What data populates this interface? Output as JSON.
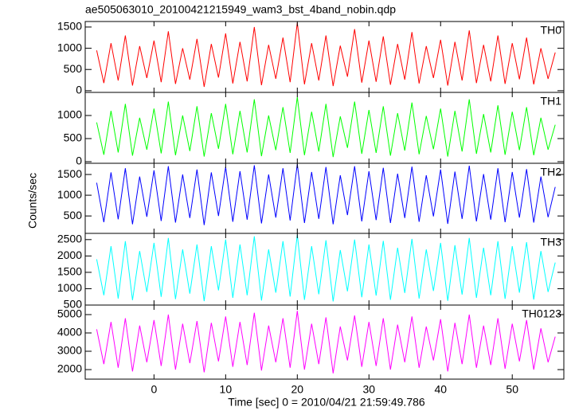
{
  "chart_data": [
    {
      "type": "line",
      "title": "ae505063010_20100421215949_wam3_bst_4band_nobin.qdp",
      "x": [
        -8,
        -7,
        -6,
        -5,
        -4,
        -3,
        -2,
        -1,
        0,
        1,
        2,
        3,
        4,
        5,
        6,
        7,
        8,
        9,
        10,
        11,
        12,
        13,
        14,
        15,
        16,
        17,
        18,
        19,
        20,
        21,
        22,
        23,
        24,
        25,
        26,
        27,
        28,
        29,
        30,
        31,
        32,
        33,
        34,
        35,
        36,
        37,
        38,
        39,
        40,
        41,
        42,
        43,
        44,
        45,
        46,
        47,
        48,
        49,
        50,
        51,
        52,
        53,
        54,
        55,
        56
      ],
      "series": [
        {
          "name": "TH0",
          "color": "#ff0000",
          "values": [
            950,
            180,
            1120,
            240,
            1300,
            120,
            1050,
            300,
            1180,
            200,
            1400,
            160,
            1000,
            260,
            1220,
            90,
            1100,
            310,
            1350,
            170,
            1150,
            220,
            1500,
            130,
            1080,
            280,
            1250,
            200,
            1600,
            150,
            1120,
            240,
            1300,
            110,
            1060,
            330,
            1450,
            190,
            1180,
            210,
            1280,
            140,
            1100,
            260,
            1380,
            170,
            1050,
            300,
            1200,
            120,
            1150,
            240,
            1420,
            180,
            1080,
            220,
            1300,
            160,
            1120,
            270,
            1250,
            150,
            1000,
            280,
            900
          ]
        }
      ],
      "xlim": [
        -9.6,
        57.2
      ],
      "xticks": [
        0,
        10,
        20,
        30,
        40,
        50
      ],
      "ylim": [
        -40,
        1630
      ],
      "yticks": [
        0,
        500,
        1000,
        1500
      ]
    },
    {
      "type": "line",
      "x": [
        -8,
        -7,
        -6,
        -5,
        -4,
        -3,
        -2,
        -1,
        0,
        1,
        2,
        3,
        4,
        5,
        6,
        7,
        8,
        9,
        10,
        11,
        12,
        13,
        14,
        15,
        16,
        17,
        18,
        19,
        20,
        21,
        22,
        23,
        24,
        25,
        26,
        27,
        28,
        29,
        30,
        31,
        32,
        33,
        34,
        35,
        36,
        37,
        38,
        39,
        40,
        41,
        42,
        43,
        44,
        45,
        46,
        47,
        48,
        49,
        50,
        51,
        52,
        53,
        54,
        55,
        56
      ],
      "series": [
        {
          "name": "TH1",
          "color": "#00ff00",
          "values": [
            850,
            150,
            1100,
            200,
            1250,
            130,
            950,
            260,
            1150,
            180,
            1300,
            140,
            1000,
            230,
            1200,
            110,
            1050,
            280,
            1250,
            160,
            1100,
            200,
            1350,
            120,
            1000,
            250,
            1180,
            190,
            1400,
            140,
            1080,
            220,
            1250,
            100,
            980,
            300,
            1300,
            170,
            1120,
            190,
            1200,
            130,
            1050,
            240,
            1280,
            160,
            990,
            270,
            1150,
            110,
            1100,
            220,
            1350,
            170,
            1030,
            200,
            1220,
            150,
            1080,
            250,
            1180,
            140,
            950,
            260,
            800
          ]
        }
      ],
      "xlim": [
        -9.6,
        57.2
      ],
      "xticks": [
        0,
        10,
        20,
        30,
        40,
        50
      ],
      "ylim": [
        -35,
        1500
      ],
      "yticks": [
        0,
        500,
        1000
      ]
    },
    {
      "type": "line",
      "ylabel": "Counts/sec",
      "x": [
        -8,
        -7,
        -6,
        -5,
        -4,
        -3,
        -2,
        -1,
        0,
        1,
        2,
        3,
        4,
        5,
        6,
        7,
        8,
        9,
        10,
        11,
        12,
        13,
        14,
        15,
        16,
        17,
        18,
        19,
        20,
        21,
        22,
        23,
        24,
        25,
        26,
        27,
        28,
        29,
        30,
        31,
        32,
        33,
        34,
        35,
        36,
        37,
        38,
        39,
        40,
        41,
        42,
        43,
        44,
        45,
        46,
        47,
        48,
        49,
        50,
        51,
        52,
        53,
        54,
        55,
        56
      ],
      "series": [
        {
          "name": "TH2",
          "color": "#0000ff",
          "values": [
            1300,
            350,
            1550,
            420,
            1650,
            300,
            1450,
            480,
            1600,
            380,
            1700,
            340,
            1500,
            450,
            1620,
            280,
            1550,
            500,
            1680,
            360,
            1580,
            410,
            1720,
            320,
            1500,
            460,
            1650,
            390,
            1750,
            330,
            1560,
            430,
            1680,
            300,
            1480,
            520,
            1700,
            370,
            1580,
            400,
            1660,
            330,
            1520,
            450,
            1690,
            360,
            1480,
            490,
            1620,
            310,
            1570,
            430,
            1710,
            370,
            1510,
            410,
            1650,
            350,
            1560,
            460,
            1630,
            340,
            1450,
            470,
            1200
          ]
        }
      ],
      "xlim": [
        -9.6,
        57.2
      ],
      "xticks": [
        0,
        10,
        20,
        30,
        40,
        50
      ],
      "ylim": [
        80,
        1770
      ],
      "yticks": [
        500,
        1000,
        1500
      ]
    },
    {
      "type": "line",
      "x": [
        -8,
        -7,
        -6,
        -5,
        -4,
        -3,
        -2,
        -1,
        0,
        1,
        2,
        3,
        4,
        5,
        6,
        7,
        8,
        9,
        10,
        11,
        12,
        13,
        14,
        15,
        16,
        17,
        18,
        19,
        20,
        21,
        22,
        23,
        24,
        25,
        26,
        27,
        28,
        29,
        30,
        31,
        32,
        33,
        34,
        35,
        36,
        37,
        38,
        39,
        40,
        41,
        42,
        43,
        44,
        45,
        46,
        47,
        48,
        49,
        50,
        51,
        52,
        53,
        54,
        55,
        56
      ],
      "series": [
        {
          "name": "TH3",
          "color": "#00ffff",
          "values": [
            1900,
            800,
            2300,
            700,
            2450,
            650,
            2150,
            900,
            2400,
            750,
            2550,
            680,
            2200,
            850,
            2350,
            620,
            2300,
            950,
            2500,
            720,
            2350,
            800,
            2600,
            640,
            2200,
            880,
            2450,
            760,
            2650,
            660,
            2300,
            830,
            2480,
            610,
            2180,
            920,
            2500,
            740,
            2350,
            790,
            2460,
            660,
            2250,
            870,
            2520,
            700,
            2200,
            930,
            2400,
            630,
            2330,
            820,
            2550,
            720,
            2250,
            800,
            2450,
            690,
            2300,
            880,
            2420,
            670,
            2150,
            900,
            1800
          ]
        }
      ],
      "xlim": [
        -9.6,
        57.2
      ],
      "xticks": [
        0,
        10,
        20,
        30,
        40,
        50
      ],
      "ylim": [
        500,
        2690
      ],
      "yticks": [
        500,
        1000,
        1500,
        2000,
        2500
      ]
    },
    {
      "type": "line",
      "xlabel": "Time [sec] 0 = 2010/04/21 21:59:49.786",
      "x": [
        -8,
        -7,
        -6,
        -5,
        -4,
        -3,
        -2,
        -1,
        0,
        1,
        2,
        3,
        4,
        5,
        6,
        7,
        8,
        9,
        10,
        11,
        12,
        13,
        14,
        15,
        16,
        17,
        18,
        19,
        20,
        21,
        22,
        23,
        24,
        25,
        26,
        27,
        28,
        29,
        30,
        31,
        32,
        33,
        34,
        35,
        36,
        37,
        38,
        39,
        40,
        41,
        42,
        43,
        44,
        45,
        46,
        47,
        48,
        49,
        50,
        51,
        52,
        53,
        54,
        55,
        56
      ],
      "series": [
        {
          "name": "TH0123",
          "color": "#ff00ff",
          "values": [
            4200,
            2300,
            4600,
            2100,
            4800,
            1900,
            4400,
            2400,
            4700,
            2200,
            5000,
            2000,
            4500,
            2350,
            4650,
            1850,
            4550,
            2450,
            4900,
            2150,
            4600,
            2250,
            5100,
            1950,
            4400,
            2400,
            4800,
            2100,
            5200,
            2000,
            4500,
            2300,
            4850,
            1800,
            4350,
            2500,
            4950,
            2150,
            4600,
            2200,
            4800,
            2000,
            4450,
            2400,
            4900,
            2100,
            4350,
            2500,
            4750,
            1900,
            4550,
            2300,
            5000,
            2100,
            4400,
            2250,
            4800,
            2050,
            4500,
            2450,
            4700,
            2000,
            4250,
            2400,
            3800
          ]
        }
      ],
      "xlim": [
        -9.6,
        57.2
      ],
      "xticks": [
        0,
        10,
        20,
        30,
        40,
        50
      ],
      "ylim": [
        1480,
        5520
      ],
      "yticks": [
        2000,
        3000,
        4000,
        5000
      ]
    }
  ]
}
